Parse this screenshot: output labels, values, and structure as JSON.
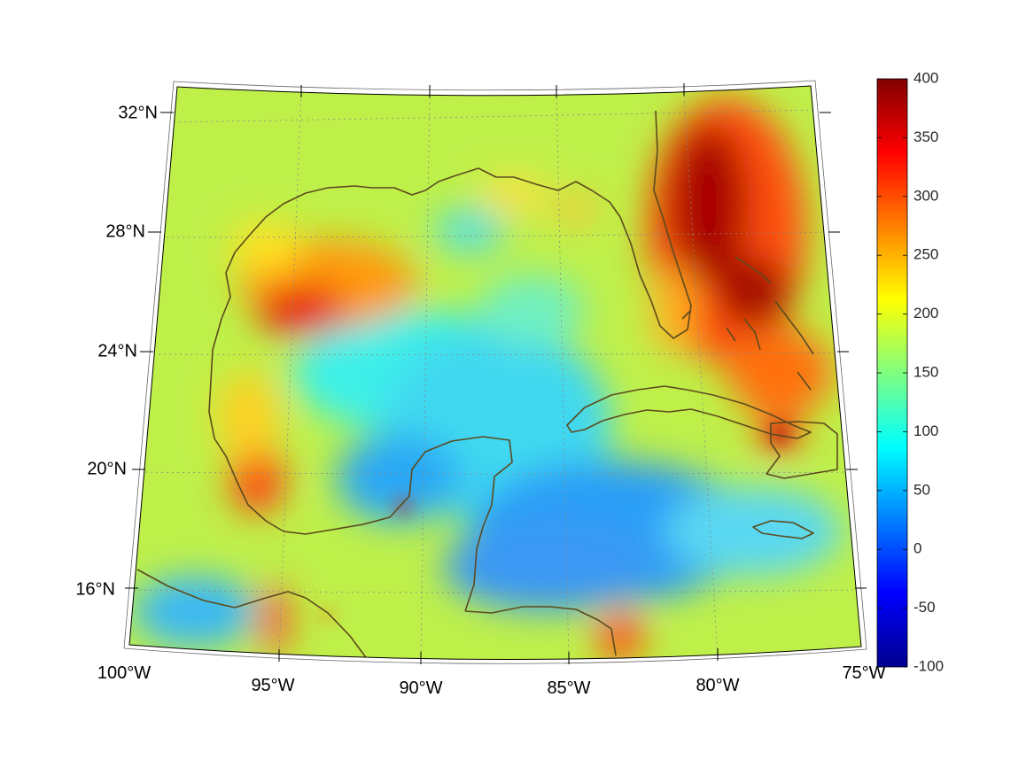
{
  "map": {
    "latitude_labels": [
      "32°N",
      "28°N",
      "24°N",
      "20°N",
      "16°N"
    ],
    "longitude_labels": [
      "100°W",
      "95°W",
      "90°W",
      "85°W",
      "80°W",
      "75°W"
    ]
  },
  "colorbar": {
    "min": -100,
    "max": 400,
    "tick_labels": [
      "400",
      "350",
      "300",
      "250",
      "200",
      "150",
      "100",
      "50",
      "0",
      "-50",
      "-100"
    ],
    "colormap": "jet",
    "colors": [
      "#00008f",
      "#0000ff",
      "#00ffff",
      "#ffff00",
      "#ff0000",
      "#800000"
    ]
  },
  "colors": {
    "coastline": "#5c4a1e",
    "graticule": "#888888",
    "frame": "#000000"
  }
}
